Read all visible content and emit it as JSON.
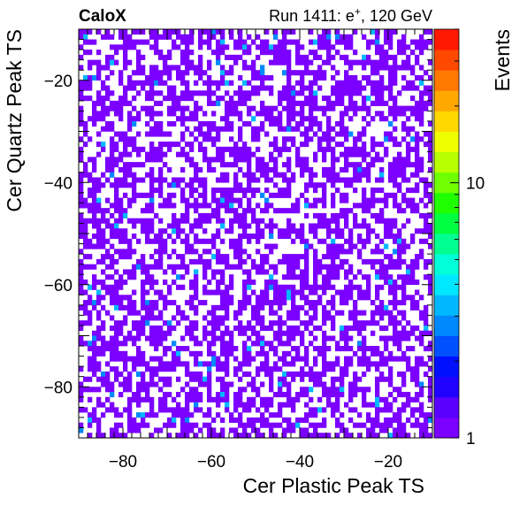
{
  "header": {
    "experiment": "CaloX",
    "run_label_prefix": "Run 1411: e",
    "run_label_sup": "+",
    "run_label_suffix": ", 120 GeV"
  },
  "chart_data": {
    "type": "heatmap",
    "xlabel": "Cer Plastic Peak TS",
    "ylabel": "Cer Quartz Peak TS",
    "zlabel": "Events",
    "xlim": [
      -90,
      -10
    ],
    "ylim": [
      -90,
      -10
    ],
    "z_scale": "log",
    "zlim": [
      1,
      40
    ],
    "x_ticks": [
      -80,
      -60,
      -40,
      -20
    ],
    "x_tick_labels": [
      "−80",
      "−60",
      "−40",
      "−20"
    ],
    "y_ticks": [
      -80,
      -60,
      -40,
      -20
    ],
    "y_tick_labels": [
      "−80",
      "−60",
      "−40",
      "−20"
    ],
    "z_ticks": [
      1,
      10
    ],
    "z_tick_labels": [
      "1",
      "10"
    ],
    "bins": {
      "nx": 80,
      "ny": 80,
      "width": 1
    },
    "fill_fraction": 0.55,
    "cell_counts_description_values": {
      "typical": 1,
      "max_observed": 2
    },
    "palette": [
      "#7b00ff",
      "#5a00ff",
      "#2000ff",
      "#0010ff",
      "#0050ff",
      "#0088ff",
      "#00b8ff",
      "#00e8ff",
      "#00ffd8",
      "#00ff90",
      "#00ff40",
      "#20ff00",
      "#70ff00",
      "#b8ff00",
      "#f0ff00",
      "#ffd800",
      "#ffa800",
      "#ff7800",
      "#ff4800",
      "#ff1800"
    ],
    "grid": false
  }
}
